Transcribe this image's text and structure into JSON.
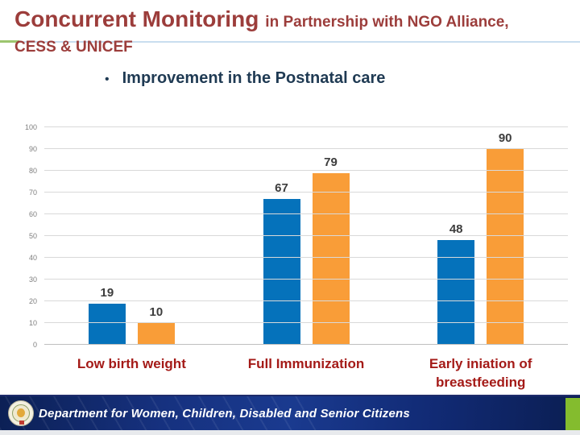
{
  "slide": {
    "title": {
      "main": "Concurrent Monitoring",
      "suffix": "in Partnership with NGO Alliance,",
      "line2": "CESS & UNICEF"
    },
    "bullet_char": "•",
    "bullet_text": "Improvement in the Postnatal care"
  },
  "chart_data": {
    "type": "bar",
    "title": "Improvement in the Postnatal care",
    "categories": [
      "Low birth weight",
      "Full Immunization",
      "Early iniation of breastfeeding"
    ],
    "series": [
      {
        "name": "blue-series",
        "color": "#0572BB",
        "values": [
          19,
          67,
          48
        ]
      },
      {
        "name": "orange-series",
        "color": "#F99D38",
        "values": [
          10,
          79,
          90
        ]
      }
    ],
    "xlabel": "",
    "ylabel": "",
    "ylim": [
      0,
      100
    ],
    "ytick_step": 10,
    "grid": true,
    "legend_position": "none",
    "data_labels": true
  },
  "footer": {
    "text": "Department for Women, Children, Disabled and Senior Citizens",
    "emblem": "government-seal-icon",
    "accent_color": "#84BC2E"
  },
  "colors": {
    "title_maroon": "#9C3D3B",
    "bullet_navy": "#1F3A53",
    "category_red": "#A41A17",
    "bar_blue": "#0572BB",
    "bar_orange": "#F99D38",
    "gridline": "#D9D9D9",
    "divider_green": "#9CC56F",
    "divider_blue": "#C9DEEF",
    "footer_navy": "#14307E"
  }
}
